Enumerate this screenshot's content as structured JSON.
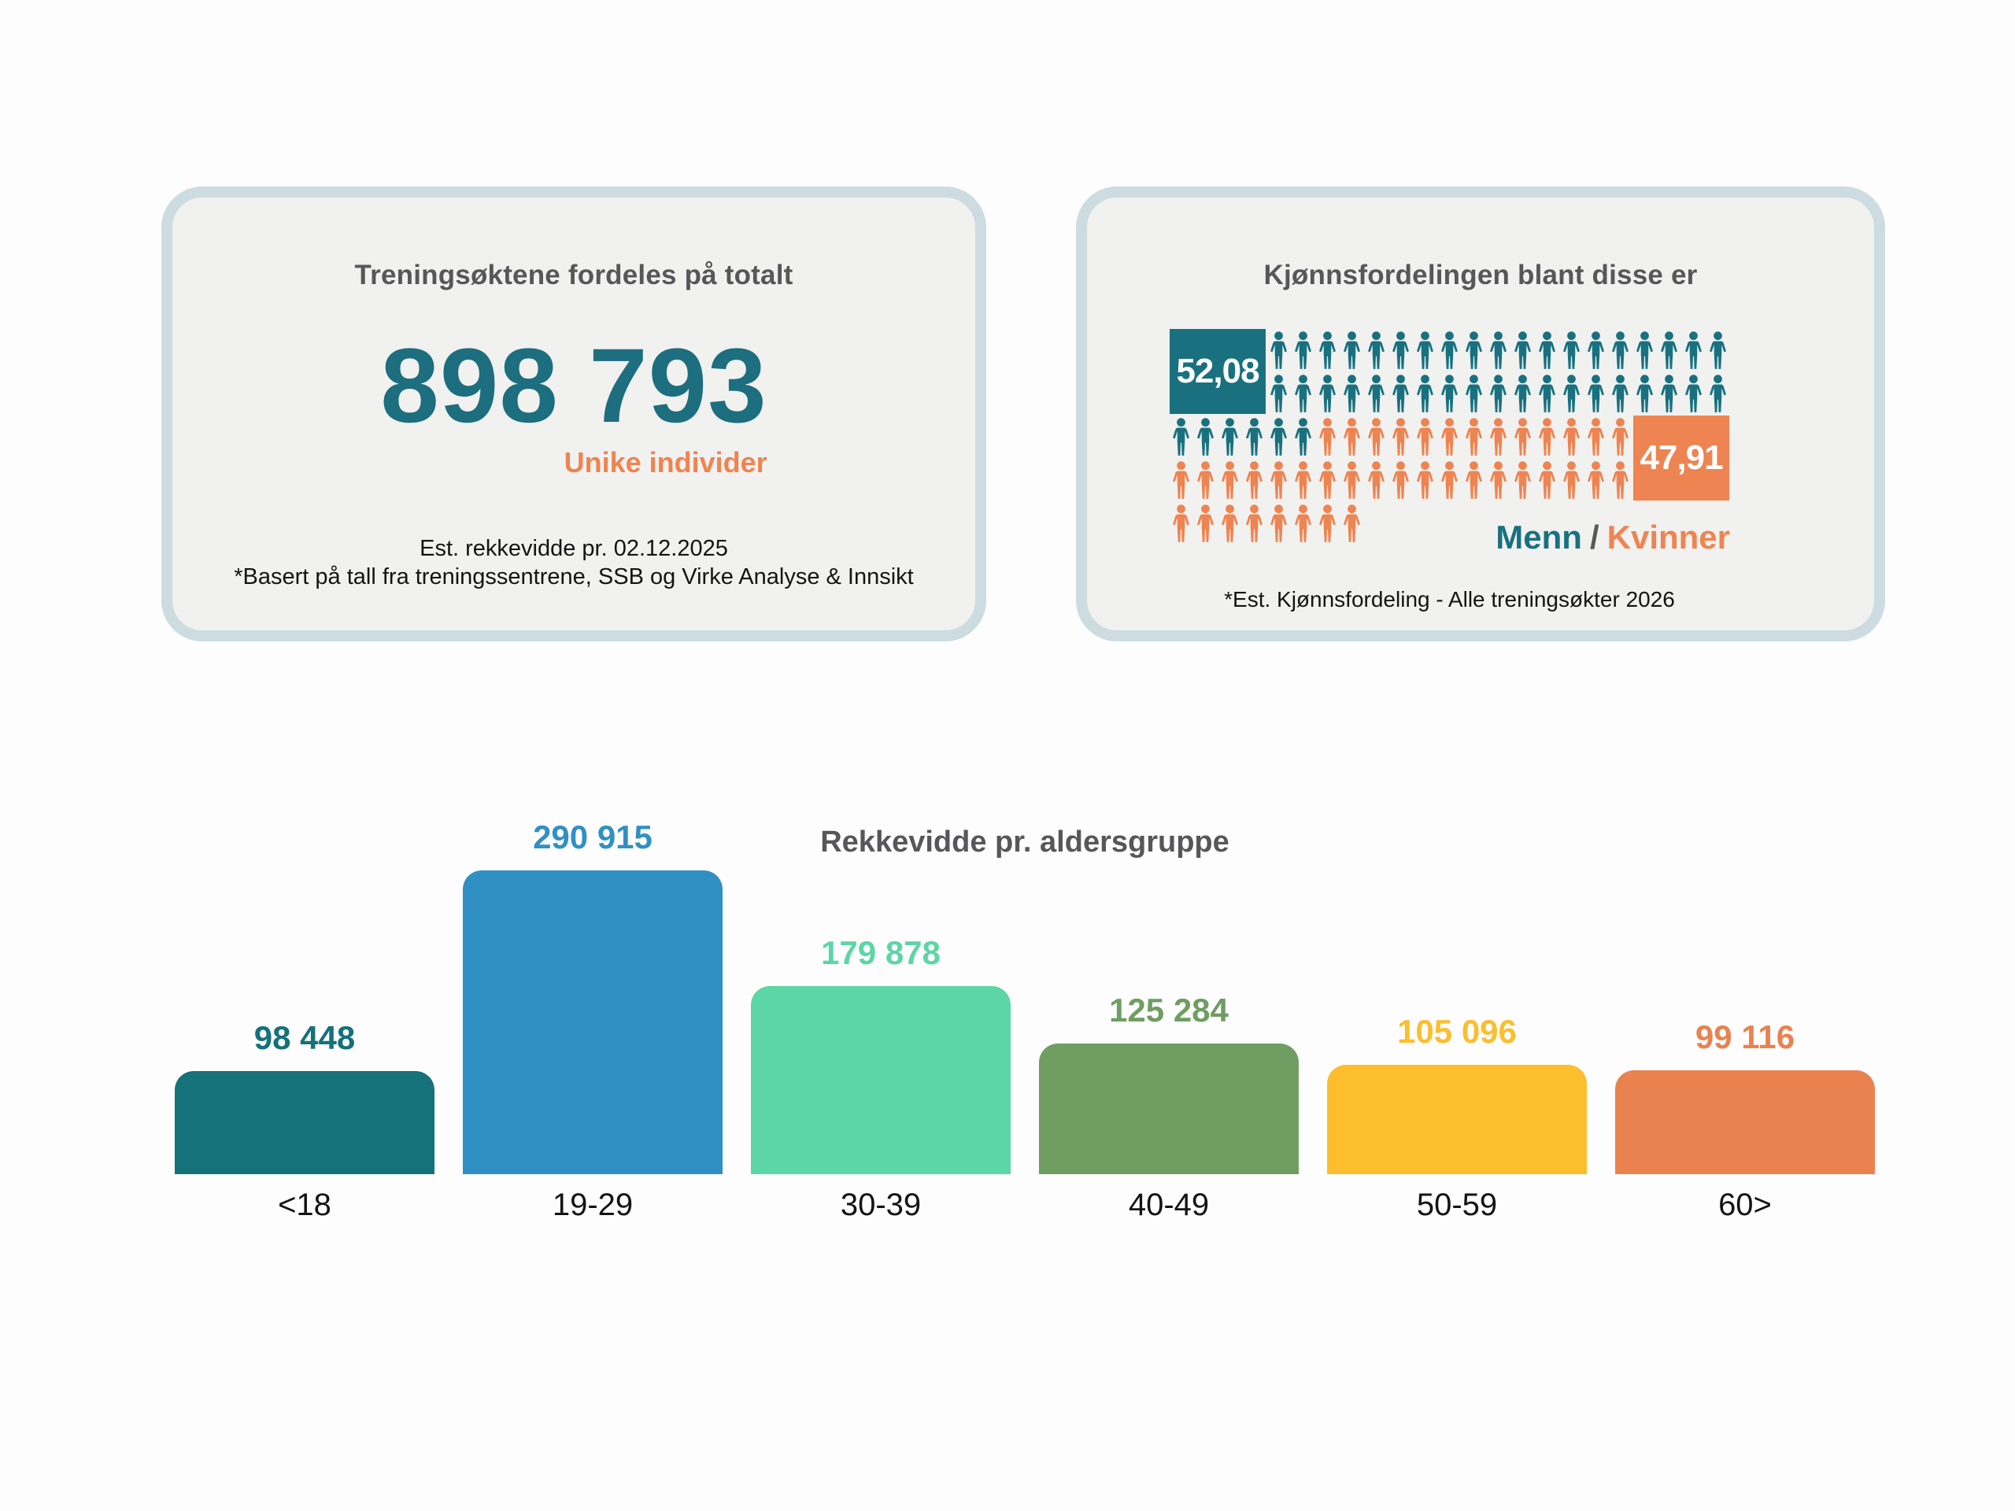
{
  "theme": {
    "background": "#fdfdfd",
    "card_background": "#f1f1f0",
    "card_border": "#ccdce0",
    "heading_gray": "#57575a",
    "teal": "#1d6e7e",
    "orange": "#ee8450",
    "note_black": "#141414"
  },
  "kpi_card": {
    "title": "Treningsøktene fordeles på totalt",
    "value": "898 793",
    "subtitle": "Unike individer",
    "note_line1": "Est. rekkevidde pr. 02.12.2025",
    "note_line2": "*Basert på tall fra treningssentrene, SSB og Virke Analyse & Innsikt"
  },
  "chart_data": [
    {
      "type": "pictogram",
      "title": "Kjønnsfordelingen blant disse er",
      "series": [
        {
          "name": "Menn",
          "value": 52.08,
          "label": "52,08",
          "color": "#19717f"
        },
        {
          "name": "Kvinner",
          "value": 47.91,
          "label": "47,91",
          "color": "#ee8451"
        }
      ],
      "legend": {
        "male": "Menn",
        "separator": "/",
        "female": "Kvinner"
      },
      "note": "*Est. Kjønnsfordeling - Alle treningsøkter 2026",
      "grid": {
        "columns": 23,
        "rows": [
          "####MMMMMMMMMMMMMMMMMMM",
          "####MMMMMMMMMMMMMMMMMMM",
          "MMMMMMFFFFFFFFFFFFF####",
          "FFFFFFFFFFFFFFFFFFF####",
          "FFFFFFFF..............."
        ],
        "male_box": {
          "row": 1,
          "col": 1,
          "row_span": 2,
          "col_span": 4
        },
        "female_box": {
          "row": 3,
          "col": 20,
          "row_span": 2,
          "col_span": 4
        }
      }
    },
    {
      "type": "bar",
      "title": "Rekkevidde pr. aldersgruppe",
      "categories": [
        "<18",
        "19-29",
        "30-39",
        "40-49",
        "50-59",
        "60>"
      ],
      "values": [
        98448,
        290915,
        179878,
        125284,
        105096,
        99116
      ],
      "value_labels": [
        "98 448",
        "290 915",
        "179 878",
        "125 284",
        "105 096",
        "99 116"
      ],
      "colors": [
        "#15717a",
        "#3190c3",
        "#5cd6a4",
        "#6f9d62",
        "#fcbe2d",
        "#e9824f"
      ],
      "xlabel": "",
      "ylabel": "",
      "ylim": [
        0,
        290915
      ],
      "grid": false,
      "legend_position": "none"
    }
  ]
}
